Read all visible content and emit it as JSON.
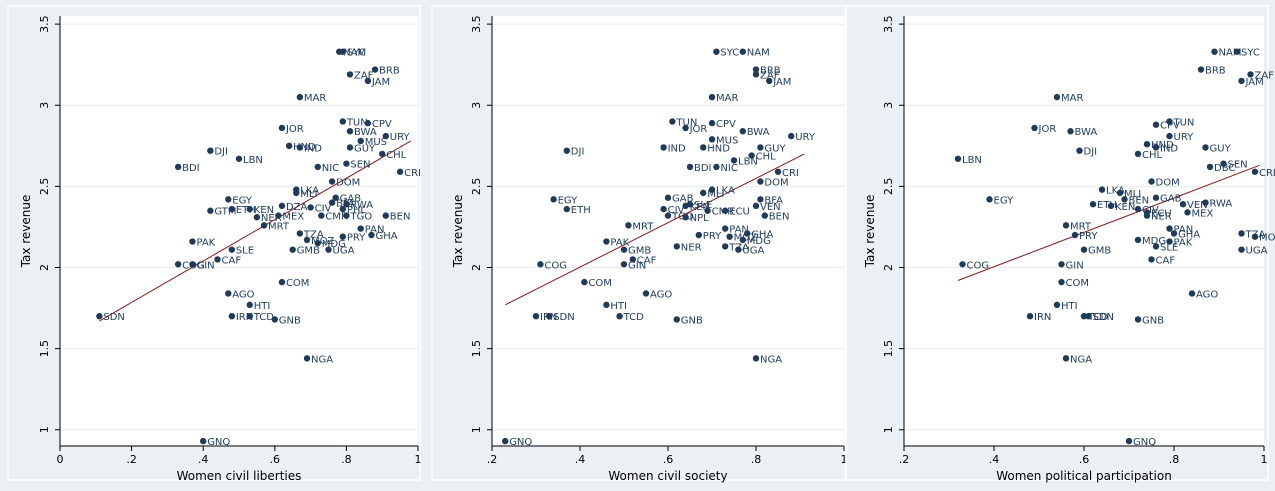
{
  "chart_data": [
    {
      "type": "scatter",
      "xlabel": "Women civil liberties",
      "ylabel": "Tax revenue",
      "xlim": [
        0,
        1
      ],
      "ylim": [
        0.9,
        3.55
      ],
      "xticks": [
        0,
        0.2,
        0.4,
        0.6,
        0.8,
        1
      ],
      "xtick_labels": [
        "0",
        ".2",
        ".4",
        ".6",
        ".8",
        "1"
      ],
      "yticks": [
        1,
        1.5,
        2,
        2.5,
        3,
        3.5
      ],
      "ytick_labels": [
        "1",
        "1.5",
        "2",
        "2.5",
        "3",
        "3.5"
      ],
      "grid": true,
      "fit_line": {
        "x": [
          0.11,
          0.98
        ],
        "y": [
          1.67,
          2.78
        ]
      },
      "points": [
        {
          "label": "SDN",
          "x": 0.11,
          "y": 1.7
        },
        {
          "label": "BDI",
          "x": 0.33,
          "y": 2.62
        },
        {
          "label": "DJI",
          "x": 0.42,
          "y": 2.72
        },
        {
          "label": "LBN",
          "x": 0.5,
          "y": 2.67
        },
        {
          "label": "COG",
          "x": 0.33,
          "y": 2.02
        },
        {
          "label": "GIN",
          "x": 0.37,
          "y": 2.02
        },
        {
          "label": "PAK",
          "x": 0.37,
          "y": 2.16
        },
        {
          "label": "SLE",
          "x": 0.48,
          "y": 2.11
        },
        {
          "label": "CAF",
          "x": 0.44,
          "y": 2.05
        },
        {
          "label": "AGO",
          "x": 0.47,
          "y": 1.84
        },
        {
          "label": "HTI",
          "x": 0.53,
          "y": 1.77
        },
        {
          "label": "IRN",
          "x": 0.48,
          "y": 1.7
        },
        {
          "label": "TCD",
          "x": 0.53,
          "y": 1.7
        },
        {
          "label": "GNB",
          "x": 0.6,
          "y": 1.68
        },
        {
          "label": "GNQ",
          "x": 0.4,
          "y": 0.93
        },
        {
          "label": "NGA",
          "x": 0.69,
          "y": 1.44
        },
        {
          "label": "COM",
          "x": 0.62,
          "y": 1.91
        },
        {
          "label": "EGY",
          "x": 0.47,
          "y": 2.42
        },
        {
          "label": "GTM",
          "x": 0.42,
          "y": 2.35
        },
        {
          "label": "ETH",
          "x": 0.48,
          "y": 2.36
        },
        {
          "label": "KEN",
          "x": 0.53,
          "y": 2.36
        },
        {
          "label": "NER",
          "x": 0.55,
          "y": 2.31
        },
        {
          "label": "MEX",
          "x": 0.61,
          "y": 2.32
        },
        {
          "label": "MRT",
          "x": 0.57,
          "y": 2.26
        },
        {
          "label": "DZA",
          "x": 0.62,
          "y": 2.38
        },
        {
          "label": "GMB",
          "x": 0.65,
          "y": 2.11
        },
        {
          "label": "TZA",
          "x": 0.67,
          "y": 2.21
        },
        {
          "label": "MOZ",
          "x": 0.69,
          "y": 2.17
        },
        {
          "label": "UGA",
          "x": 0.75,
          "y": 2.11
        },
        {
          "label": "MDG",
          "x": 0.72,
          "y": 2.15
        },
        {
          "label": "LKA",
          "x": 0.66,
          "y": 2.48
        },
        {
          "label": "MLI",
          "x": 0.66,
          "y": 2.46
        },
        {
          "label": "CIV",
          "x": 0.7,
          "y": 2.37
        },
        {
          "label": "GAB",
          "x": 0.77,
          "y": 2.43
        },
        {
          "label": "RWA",
          "x": 0.8,
          "y": 2.39
        },
        {
          "label": "CMR",
          "x": 0.73,
          "y": 2.32
        },
        {
          "label": "BFA",
          "x": 0.76,
          "y": 2.4
        },
        {
          "label": "TGO",
          "x": 0.8,
          "y": 2.32
        },
        {
          "label": "PHL",
          "x": 0.79,
          "y": 2.36
        },
        {
          "label": "PRY",
          "x": 0.79,
          "y": 2.19
        },
        {
          "label": "PAN",
          "x": 0.84,
          "y": 2.24
        },
        {
          "label": "GHA",
          "x": 0.87,
          "y": 2.2
        },
        {
          "label": "BEN",
          "x": 0.91,
          "y": 2.32
        },
        {
          "label": "DOM",
          "x": 0.76,
          "y": 2.53
        },
        {
          "label": "NIC",
          "x": 0.72,
          "y": 2.62
        },
        {
          "label": "SEN",
          "x": 0.8,
          "y": 2.64
        },
        {
          "label": "CRI",
          "x": 0.95,
          "y": 2.59
        },
        {
          "label": "CHL",
          "x": 0.9,
          "y": 2.7
        },
        {
          "label": "IND",
          "x": 0.67,
          "y": 2.74
        },
        {
          "label": "HND",
          "x": 0.64,
          "y": 2.75
        },
        {
          "label": "JOR",
          "x": 0.62,
          "y": 2.86
        },
        {
          "label": "GUY",
          "x": 0.81,
          "y": 2.74
        },
        {
          "label": "MUS",
          "x": 0.84,
          "y": 2.78
        },
        {
          "label": "BWA",
          "x": 0.81,
          "y": 2.84
        },
        {
          "label": "URY",
          "x": 0.91,
          "y": 2.81
        },
        {
          "label": "TUN",
          "x": 0.79,
          "y": 2.9
        },
        {
          "label": "CPV",
          "x": 0.86,
          "y": 2.89
        },
        {
          "label": "MAR",
          "x": 0.67,
          "y": 3.05
        },
        {
          "label": "JAM",
          "x": 0.86,
          "y": 3.15
        },
        {
          "label": "ZAF",
          "x": 0.81,
          "y": 3.19
        },
        {
          "label": "BRB",
          "x": 0.88,
          "y": 3.22
        },
        {
          "label": "NAM",
          "x": 0.78,
          "y": 3.33
        },
        {
          "label": "SYC",
          "x": 0.79,
          "y": 3.33
        }
      ]
    },
    {
      "type": "scatter",
      "xlabel": "Women civil society",
      "ylabel": "Tax revenue",
      "xlim": [
        0.2,
        1
      ],
      "ylim": [
        0.9,
        3.55
      ],
      "xticks": [
        0.2,
        0.4,
        0.6,
        0.8,
        1
      ],
      "xtick_labels": [
        ".2",
        ".4",
        ".6",
        ".8",
        "1"
      ],
      "yticks": [
        1,
        1.5,
        2,
        2.5,
        3,
        3.5
      ],
      "ytick_labels": [
        "1",
        "1.5",
        "2",
        "2.5",
        "3",
        "3.5"
      ],
      "grid": true,
      "fit_line": {
        "x": [
          0.23,
          0.91
        ],
        "y": [
          1.77,
          2.7
        ]
      },
      "points": [
        {
          "label": "GNQ",
          "x": 0.23,
          "y": 0.93
        },
        {
          "label": "IRN",
          "x": 0.3,
          "y": 1.7
        },
        {
          "label": "SDN",
          "x": 0.33,
          "y": 1.7
        },
        {
          "label": "COG",
          "x": 0.31,
          "y": 2.02
        },
        {
          "label": "COM",
          "x": 0.41,
          "y": 1.91
        },
        {
          "label": "HTI",
          "x": 0.46,
          "y": 1.77
        },
        {
          "label": "TCD",
          "x": 0.49,
          "y": 1.7
        },
        {
          "label": "AGO",
          "x": 0.55,
          "y": 1.84
        },
        {
          "label": "GNB",
          "x": 0.62,
          "y": 1.68
        },
        {
          "label": "NGA",
          "x": 0.8,
          "y": 1.44
        },
        {
          "label": "DJI",
          "x": 0.37,
          "y": 2.72
        },
        {
          "label": "EGY",
          "x": 0.34,
          "y": 2.42
        },
        {
          "label": "ETH",
          "x": 0.37,
          "y": 2.36
        },
        {
          "label": "PAK",
          "x": 0.46,
          "y": 2.16
        },
        {
          "label": "GMB",
          "x": 0.5,
          "y": 2.11
        },
        {
          "label": "CAF",
          "x": 0.52,
          "y": 2.05
        },
        {
          "label": "GIN",
          "x": 0.5,
          "y": 2.02
        },
        {
          "label": "MRT",
          "x": 0.51,
          "y": 2.26
        },
        {
          "label": "NER",
          "x": 0.62,
          "y": 2.13
        },
        {
          "label": "GAB",
          "x": 0.6,
          "y": 2.43
        },
        {
          "label": "CIV",
          "x": 0.59,
          "y": 2.36
        },
        {
          "label": "TGO",
          "x": 0.6,
          "y": 2.32
        },
        {
          "label": "SLE",
          "x": 0.65,
          "y": 2.39
        },
        {
          "label": "KEN",
          "x": 0.64,
          "y": 2.38
        },
        {
          "label": "NPL",
          "x": 0.64,
          "y": 2.31
        },
        {
          "label": "LKA",
          "x": 0.7,
          "y": 2.48
        },
        {
          "label": "MLI",
          "x": 0.68,
          "y": 2.46
        },
        {
          "label": "CMR",
          "x": 0.69,
          "y": 2.35
        },
        {
          "label": "ECU",
          "x": 0.73,
          "y": 2.35
        },
        {
          "label": "BFA",
          "x": 0.81,
          "y": 2.42
        },
        {
          "label": "VEN",
          "x": 0.8,
          "y": 2.38
        },
        {
          "label": "BEN",
          "x": 0.82,
          "y": 2.32
        },
        {
          "label": "PRY",
          "x": 0.67,
          "y": 2.2
        },
        {
          "label": "PAN",
          "x": 0.73,
          "y": 2.24
        },
        {
          "label": "MOZ",
          "x": 0.74,
          "y": 2.19
        },
        {
          "label": "GHA",
          "x": 0.78,
          "y": 2.21
        },
        {
          "label": "MDG",
          "x": 0.77,
          "y": 2.17
        },
        {
          "label": "TZA",
          "x": 0.73,
          "y": 2.13
        },
        {
          "label": "UGA",
          "x": 0.76,
          "y": 2.11
        },
        {
          "label": "BDI",
          "x": 0.65,
          "y": 2.62
        },
        {
          "label": "NIC",
          "x": 0.71,
          "y": 2.62
        },
        {
          "label": "LBN",
          "x": 0.75,
          "y": 2.66
        },
        {
          "label": "CHL",
          "x": 0.79,
          "y": 2.69
        },
        {
          "label": "GUY",
          "x": 0.81,
          "y": 2.74
        },
        {
          "label": "DOM",
          "x": 0.81,
          "y": 2.53
        },
        {
          "label": "CRI",
          "x": 0.85,
          "y": 2.59
        },
        {
          "label": "IND",
          "x": 0.59,
          "y": 2.74
        },
        {
          "label": "HND",
          "x": 0.68,
          "y": 2.74
        },
        {
          "label": "MUS",
          "x": 0.7,
          "y": 2.79
        },
        {
          "label": "BWA",
          "x": 0.77,
          "y": 2.84
        },
        {
          "label": "URY",
          "x": 0.88,
          "y": 2.81
        },
        {
          "label": "TUN",
          "x": 0.61,
          "y": 2.9
        },
        {
          "label": "JOR",
          "x": 0.64,
          "y": 2.86
        },
        {
          "label": "CPV",
          "x": 0.7,
          "y": 2.89
        },
        {
          "label": "MAR",
          "x": 0.7,
          "y": 3.05
        },
        {
          "label": "NAM",
          "x": 0.77,
          "y": 3.33
        },
        {
          "label": "SYC",
          "x": 0.71,
          "y": 3.33
        },
        {
          "label": "BRB",
          "x": 0.8,
          "y": 3.22
        },
        {
          "label": "ZAF",
          "x": 0.8,
          "y": 3.19
        },
        {
          "label": "JAM",
          "x": 0.83,
          "y": 3.15
        }
      ]
    },
    {
      "type": "scatter",
      "xlabel": "Women political participation",
      "ylabel": "Tax revenue",
      "xlim": [
        0.2,
        1
      ],
      "ylim": [
        0.9,
        3.55
      ],
      "xticks": [
        0.2,
        0.4,
        0.6,
        0.8,
        1
      ],
      "xtick_labels": [
        ".2",
        ".4",
        ".6",
        ".8",
        "1"
      ],
      "yticks": [
        1,
        1.5,
        2,
        2.5,
        3,
        3.5
      ],
      "ytick_labels": [
        "1",
        "1.5",
        "2",
        "2.5",
        "3",
        "3.5"
      ],
      "grid": true,
      "fit_line": {
        "x": [
          0.32,
          0.99
        ],
        "y": [
          1.92,
          2.63
        ]
      },
      "points": [
        {
          "label": "LBN",
          "x": 0.32,
          "y": 2.67
        },
        {
          "label": "EGY",
          "x": 0.39,
          "y": 2.42
        },
        {
          "label": "COG",
          "x": 0.33,
          "y": 2.02
        },
        {
          "label": "IRN",
          "x": 0.48,
          "y": 1.7
        },
        {
          "label": "JOR",
          "x": 0.49,
          "y": 2.86
        },
        {
          "label": "MAR",
          "x": 0.54,
          "y": 3.05
        },
        {
          "label": "BWA",
          "x": 0.57,
          "y": 2.84
        },
        {
          "label": "DJI",
          "x": 0.59,
          "y": 2.72
        },
        {
          "label": "MRT",
          "x": 0.56,
          "y": 2.26
        },
        {
          "label": "PRY",
          "x": 0.58,
          "y": 2.2
        },
        {
          "label": "GMB",
          "x": 0.6,
          "y": 2.11
        },
        {
          "label": "GIN",
          "x": 0.55,
          "y": 2.02
        },
        {
          "label": "COM",
          "x": 0.55,
          "y": 1.91
        },
        {
          "label": "HTI",
          "x": 0.54,
          "y": 1.77
        },
        {
          "label": "GNQ",
          "x": 0.7,
          "y": 0.93
        },
        {
          "label": "NGA",
          "x": 0.56,
          "y": 1.44
        },
        {
          "label": "GNB",
          "x": 0.72,
          "y": 1.68
        },
        {
          "label": "SDN",
          "x": 0.61,
          "y": 1.7
        },
        {
          "label": "TCD",
          "x": 0.6,
          "y": 1.7
        },
        {
          "label": "AGO",
          "x": 0.84,
          "y": 1.84
        },
        {
          "label": "CAF",
          "x": 0.75,
          "y": 2.05
        },
        {
          "label": "SLE",
          "x": 0.76,
          "y": 2.13
        },
        {
          "label": "MDG",
          "x": 0.72,
          "y": 2.17
        },
        {
          "label": "PAK",
          "x": 0.79,
          "y": 2.16
        },
        {
          "label": "LKA",
          "x": 0.64,
          "y": 2.48
        },
        {
          "label": "MLI",
          "x": 0.68,
          "y": 2.46
        },
        {
          "label": "BEN",
          "x": 0.69,
          "y": 2.42
        },
        {
          "label": "ETH",
          "x": 0.62,
          "y": 2.39
        },
        {
          "label": "KEN",
          "x": 0.66,
          "y": 2.38
        },
        {
          "label": "GAB",
          "x": 0.76,
          "y": 2.43
        },
        {
          "label": "VEN",
          "x": 0.82,
          "y": 2.39
        },
        {
          "label": "RWA",
          "x": 0.87,
          "y": 2.4
        },
        {
          "label": "MEX",
          "x": 0.83,
          "y": 2.34
        },
        {
          "label": "DOM",
          "x": 0.75,
          "y": 2.53
        },
        {
          "label": "CIV",
          "x": 0.72,
          "y": 2.36
        },
        {
          "label": "ECU",
          "x": 0.74,
          "y": 2.34
        },
        {
          "label": "NER",
          "x": 0.74,
          "y": 2.32
        },
        {
          "label": "PAN",
          "x": 0.79,
          "y": 2.24
        },
        {
          "label": "GHA",
          "x": 0.8,
          "y": 2.21
        },
        {
          "label": "MOZ",
          "x": 0.98,
          "y": 2.19
        },
        {
          "label": "TZA",
          "x": 0.95,
          "y": 2.21
        },
        {
          "label": "UGA",
          "x": 0.95,
          "y": 2.11
        },
        {
          "label": "SEN",
          "x": 0.91,
          "y": 2.64
        },
        {
          "label": "CRI",
          "x": 0.98,
          "y": 2.59
        },
        {
          "label": "DBC",
          "x": 0.88,
          "y": 2.62
        },
        {
          "label": "CHL",
          "x": 0.72,
          "y": 2.7
        },
        {
          "label": "IND",
          "x": 0.76,
          "y": 2.74
        },
        {
          "label": "HND",
          "x": 0.74,
          "y": 2.76
        },
        {
          "label": "GUY",
          "x": 0.87,
          "y": 2.74
        },
        {
          "label": "URY",
          "x": 0.79,
          "y": 2.81
        },
        {
          "label": "CPV",
          "x": 0.76,
          "y": 2.88
        },
        {
          "label": "TUN",
          "x": 0.79,
          "y": 2.9
        },
        {
          "label": "BRB",
          "x": 0.86,
          "y": 3.22
        },
        {
          "label": "NAM",
          "x": 0.89,
          "y": 3.33
        },
        {
          "label": "SYC",
          "x": 0.94,
          "y": 3.33
        },
        {
          "label": "ZAF",
          "x": 0.97,
          "y": 3.19
        },
        {
          "label": "JAM",
          "x": 0.95,
          "y": 3.15
        }
      ]
    }
  ],
  "colors": {
    "background": "#eaf0f3",
    "plot_area": "#ffffff",
    "marker": "#1f3b5c",
    "fit_line": "#8b1a1a",
    "gridline": "#e6ecef",
    "text": "#1f3b5c"
  }
}
